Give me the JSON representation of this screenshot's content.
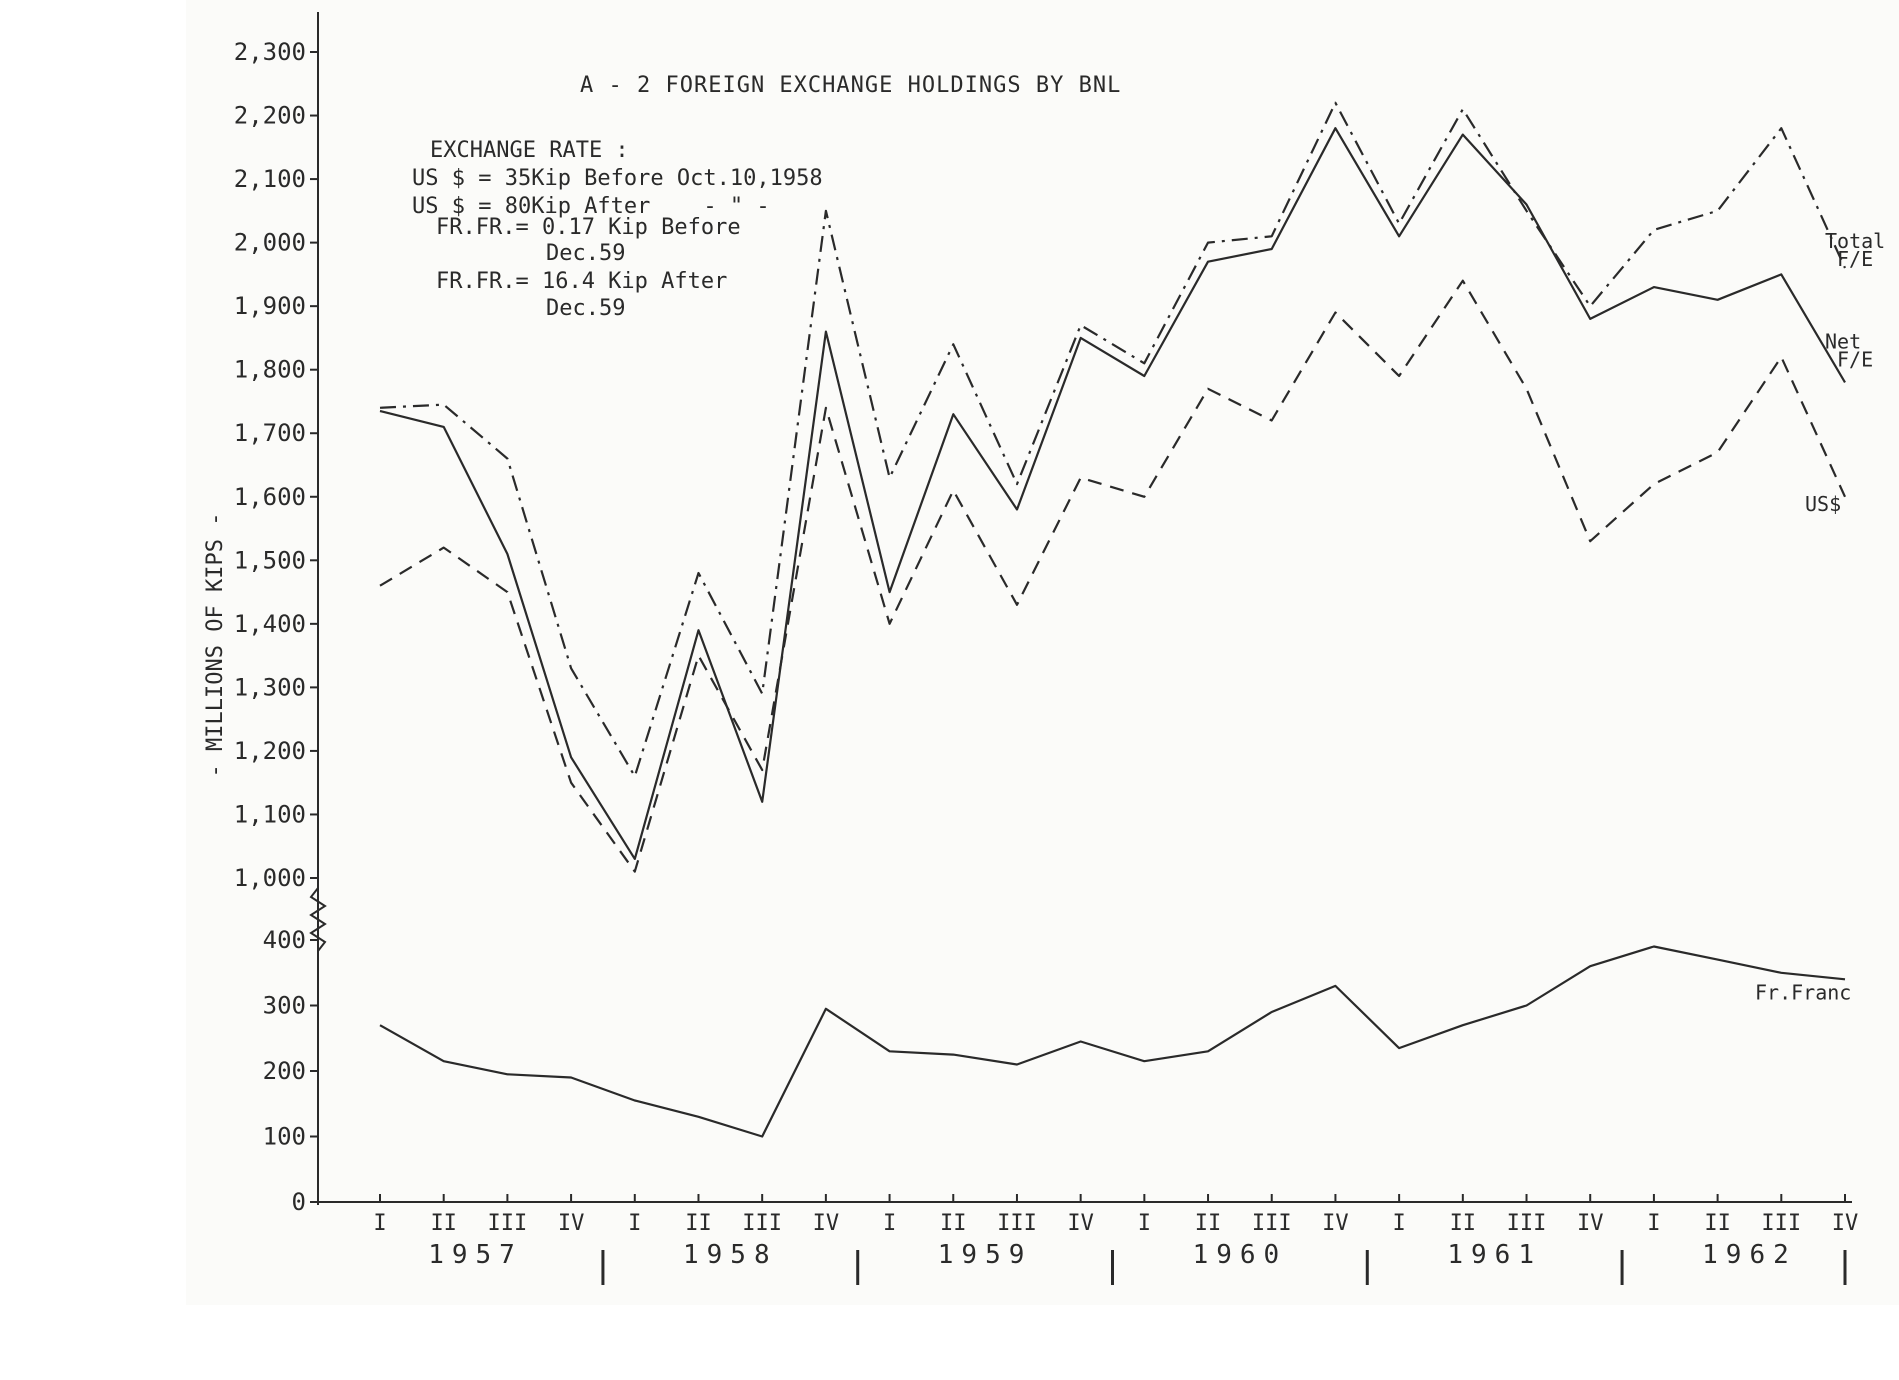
{
  "chart_data": {
    "type": "line",
    "title": "A - 2 FOREIGN EXCHANGE HOLDINGS BY BNL",
    "ylabel": "- MILLIONS OF KIPS -",
    "xlabel": "",
    "y_axis_break": true,
    "upper_ylim": [
      1000,
      2300
    ],
    "lower_ylim": [
      0,
      400
    ],
    "upper_yticks": [
      "1,000",
      "1,100",
      "1,200",
      "1,300",
      "1,400",
      "1,500",
      "1,600",
      "1,700",
      "1,800",
      "1,900",
      "2,000",
      "2,100",
      "2,200",
      "2,300"
    ],
    "lower_yticks": [
      "0",
      "100",
      "200",
      "300",
      "400"
    ],
    "upper_ytick_values": [
      1000,
      1100,
      1200,
      1300,
      1400,
      1500,
      1600,
      1700,
      1800,
      1900,
      2000,
      2100,
      2200,
      2300
    ],
    "lower_ytick_values": [
      0,
      100,
      200,
      300,
      400
    ],
    "categories": [
      "I",
      "II",
      "III",
      "IV",
      "I",
      "II",
      "III",
      "IV",
      "I",
      "II",
      "III",
      "IV",
      "I",
      "II",
      "III",
      "IV",
      "I",
      "II",
      "III",
      "IV",
      "I",
      "II",
      "III",
      "IV"
    ],
    "years": [
      {
        "label": "1957",
        "start": 0,
        "end": 3
      },
      {
        "label": "1958",
        "start": 4,
        "end": 7
      },
      {
        "label": "1959",
        "start": 8,
        "end": 11
      },
      {
        "label": "1960",
        "start": 12,
        "end": 15
      },
      {
        "label": "1961",
        "start": 16,
        "end": 19
      },
      {
        "label": "1962",
        "start": 20,
        "end": 23
      }
    ],
    "year_dividers_after": [
      3,
      7,
      11,
      15,
      19,
      23
    ],
    "series": [
      {
        "name": "Total F/E",
        "panel": "upper",
        "style": "dashdot",
        "values": [
          1740,
          1745,
          1660,
          1330,
          1160,
          1480,
          1290,
          2050,
          1630,
          1840,
          1620,
          1870,
          1810,
          2000,
          2010,
          2220,
          2030,
          2210,
          2050,
          1900,
          2020,
          2050,
          2180,
          1960
        ]
      },
      {
        "name": "Net F/E",
        "panel": "upper",
        "style": "solid",
        "values": [
          1735,
          1710,
          1510,
          1190,
          1030,
          1390,
          1120,
          1860,
          1450,
          1730,
          1580,
          1850,
          1790,
          1970,
          1990,
          2180,
          2010,
          2170,
          2060,
          1880,
          1930,
          1910,
          1950,
          1780
        ]
      },
      {
        "name": "US$",
        "panel": "upper",
        "style": "dashed",
        "values": [
          1460,
          1520,
          1450,
          1150,
          1010,
          1350,
          1170,
          1740,
          1400,
          1610,
          1430,
          1630,
          1600,
          1770,
          1720,
          1890,
          1790,
          1940,
          1770,
          1530,
          1620,
          1670,
          1820,
          1600
        ]
      },
      {
        "name": "Fr.Franc",
        "panel": "lower",
        "style": "solid",
        "values": [
          270,
          215,
          195,
          190,
          155,
          130,
          100,
          295,
          230,
          225,
          210,
          245,
          215,
          230,
          290,
          330,
          235,
          270,
          300,
          360,
          390,
          370,
          350,
          340
        ]
      }
    ],
    "series_labels": [
      {
        "index": 0,
        "line1": "Total",
        "line2": "F/E"
      },
      {
        "index": 1,
        "line1": "Net",
        "line2": "F/E"
      },
      {
        "index": 2,
        "line1": "US$",
        "line2": ""
      },
      {
        "index": 3,
        "line1": "Fr.Franc",
        "line2": ""
      }
    ],
    "annotations": [
      "EXCHANGE RATE :",
      "US $ = 35Kip Before Oct.10,1958",
      "US $ = 80Kip After    - \" -",
      "FR.FR.= 0.17 Kip Before",
      "Dec.59",
      "FR.FR.= 16.4 Kip After",
      "Dec.59"
    ],
    "grid": false,
    "legend": "none"
  }
}
